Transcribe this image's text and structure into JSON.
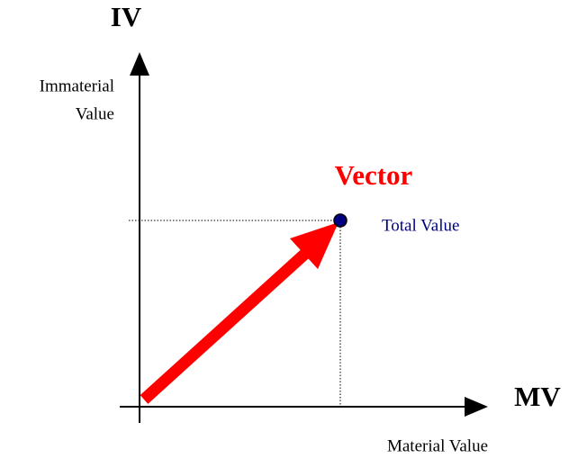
{
  "y_axis": {
    "symbol": "IV",
    "label": [
      "Immaterial",
      "Value"
    ]
  },
  "x_axis": {
    "symbol": "MV",
    "label": "Material Value"
  },
  "vector": {
    "label": "Vector"
  },
  "point": {
    "label": "Total Value"
  }
}
